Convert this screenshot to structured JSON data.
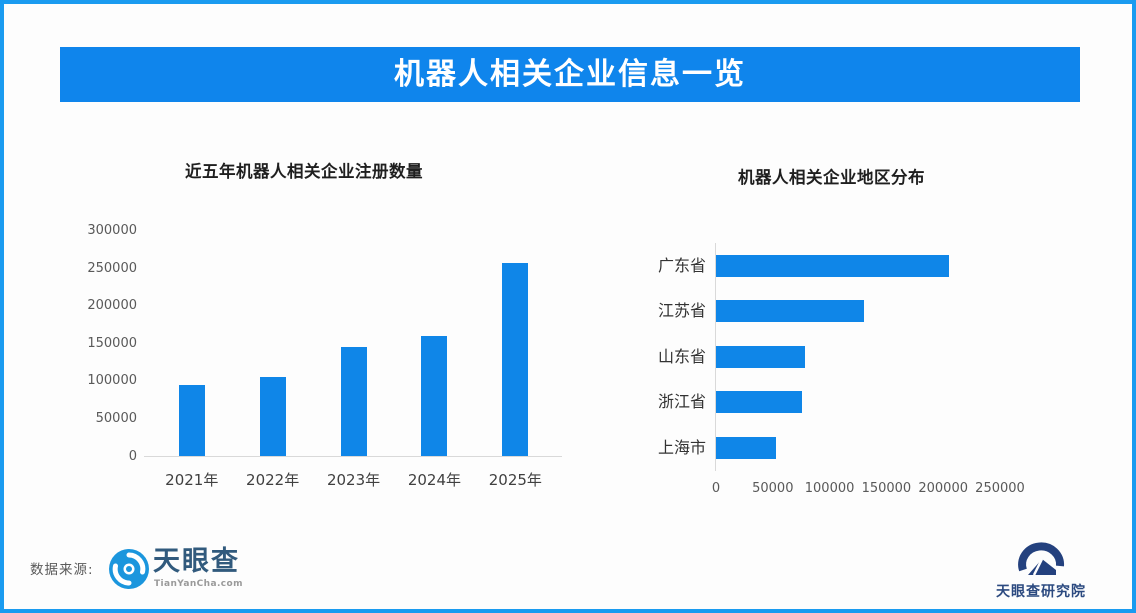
{
  "banner": {
    "title": "机器人相关企业信息一览"
  },
  "colors": {
    "banner_blue": "#0f85ec",
    "bar_blue": "#0f86e8",
    "border_blue": "#1a9bf0",
    "axis_gray": "#d9d9d9"
  },
  "chart_data": [
    {
      "type": "bar",
      "title": "近五年机器人相关企业注册数量",
      "categories": [
        "2021年",
        "2022年",
        "2023年",
        "2024年",
        "2025年"
      ],
      "values": [
        95000,
        106000,
        146000,
        160000,
        257000
      ],
      "xlabel": "",
      "ylabel": "",
      "ylim": [
        0,
        300000
      ],
      "ytick_step": 50000,
      "grid": false,
      "legend": false,
      "bar_color": "#0f86e8"
    },
    {
      "type": "bar-horizontal",
      "title": "机器人相关企业地区分布",
      "categories": [
        "广东省",
        "江苏省",
        "山东省",
        "浙江省",
        "上海市"
      ],
      "values": [
        205000,
        130000,
        78000,
        76000,
        53000
      ],
      "xlabel": "",
      "ylabel": "",
      "xlim": [
        0,
        250000
      ],
      "xtick_step": 50000,
      "grid": false,
      "legend": false,
      "bar_color": "#0f86e8"
    }
  ],
  "footer": {
    "source_label": "数据来源:",
    "tianyancha_logo": {
      "text": "天眼查",
      "subtext": "TianYanCha.com"
    },
    "institute_logo": {
      "text": "天眼查研究院"
    }
  }
}
